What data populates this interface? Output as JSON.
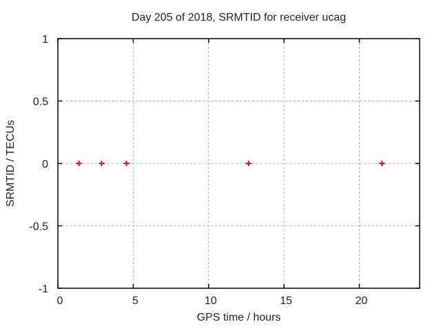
{
  "chart_data": {
    "type": "scatter",
    "title": "Day 205 of 2018, SRMTID for receiver ucag",
    "xlabel": "GPS time / hours",
    "ylabel": "SRMTID / TECUs",
    "xlim": [
      0,
      24
    ],
    "ylim": [
      -1,
      1
    ],
    "xticks": [
      0,
      5,
      10,
      15,
      20
    ],
    "yticks": [
      -1,
      -0.5,
      0,
      0.5,
      1
    ],
    "grid": true,
    "legend": "none",
    "marker_style": "plus",
    "series": [
      {
        "name": "SRMTID",
        "x": [
          1.4,
          2.9,
          4.55,
          12.65,
          21.5
        ],
        "y": [
          0,
          0,
          0,
          0,
          0
        ]
      }
    ]
  },
  "colors": {
    "background": "#ffffff",
    "frame": "#000000",
    "grid": "#b0b0b0",
    "text": "#1f1f1f",
    "marker": "#ff0000"
  }
}
